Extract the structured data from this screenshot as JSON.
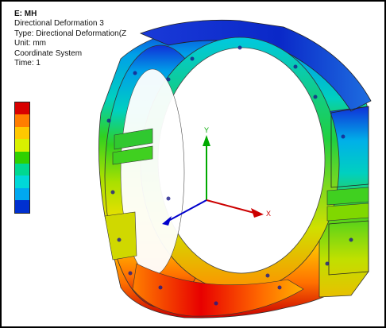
{
  "info": {
    "title": "E: MH",
    "result_name": "Directional Deformation 3",
    "type_line": "Type: Directional Deformation(Z",
    "unit_line": "Unit: mm",
    "coordinate_line": "Coordinate System",
    "time_line": "Time: 1"
  },
  "legend": {
    "colors": [
      "#d80000",
      "#ff7d00",
      "#ffc800",
      "#d8f000",
      "#30d000",
      "#00d890",
      "#00d8d8",
      "#00a8f0",
      "#0030d0"
    ]
  },
  "axes": {
    "x_label": "X",
    "y_label": "Y"
  },
  "colors": {
    "frame": "#000000",
    "x_axis": "#cc0000",
    "y_axis": "#00aa00",
    "z_axis": "#0000cc"
  }
}
